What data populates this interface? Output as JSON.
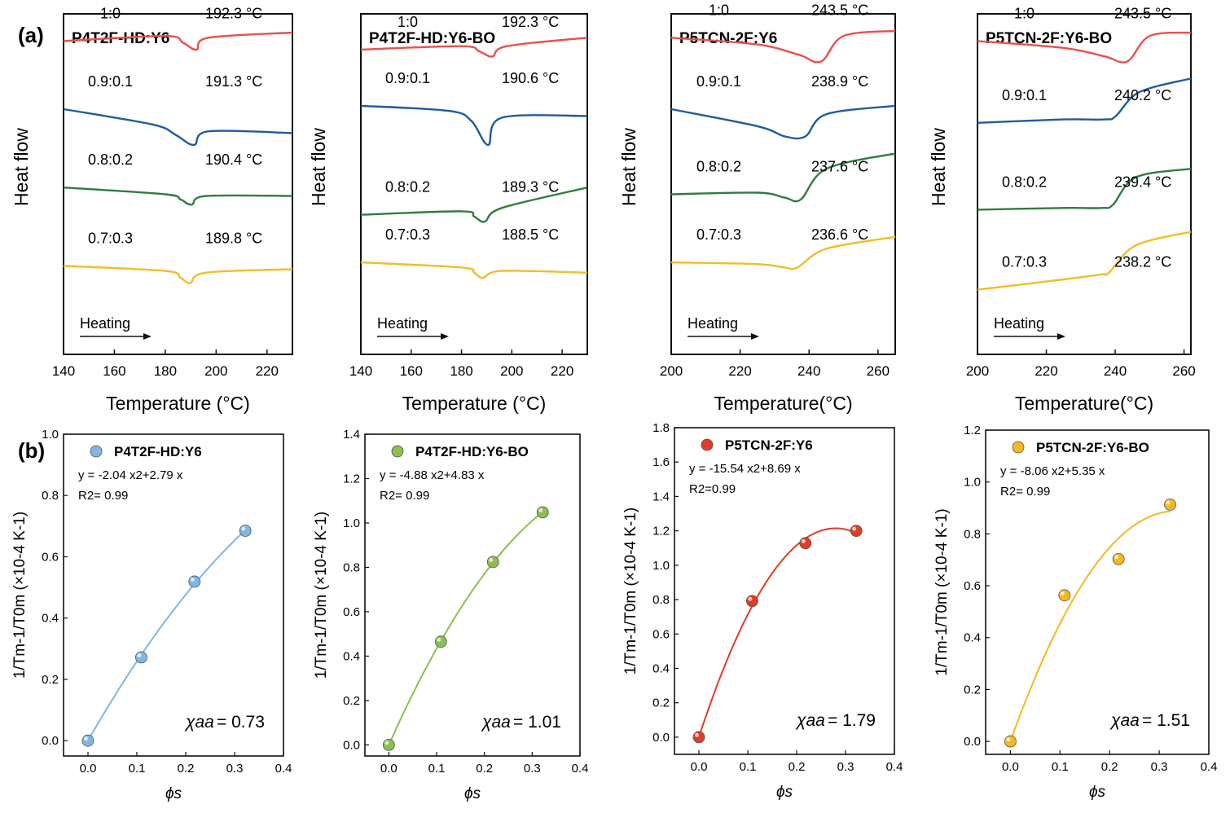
{
  "panel_labels": [
    "(a)",
    "(b)"
  ],
  "dsc_xlabel": [
    "Temperature (°C)",
    "Temperature (°C)",
    "Temperature(°C)",
    "Temperature(°C)"
  ],
  "dsc_ylabel": "Heat flow",
  "heating_label": "Heating",
  "fit_ylabel": "1/Tm-1/T0m (×10-4 K-1)",
  "fit_xlabel": "ϕs",
  "colors": {
    "r10": "#e8504f",
    "r91": "#1d5c9e",
    "r82": "#2e7d3e",
    "r73": "#f2bd26",
    "fit0": "#7fb7e3",
    "fit1": "#8cbf4f",
    "fit2": "#e03c26",
    "fit3": "#f5b820"
  },
  "chart_data": [
    {
      "type": "line",
      "title": "P4T2F-HD:Y6",
      "xlabel": "Temperature (°C)",
      "ylabel": "Heat flow",
      "xlim": [
        140,
        230
      ],
      "xticks": [
        140,
        160,
        180,
        200,
        220
      ],
      "series": [
        {
          "name": "1:0",
          "peak": "192.3 °C",
          "x": [
            140,
            180,
            187,
            192.3,
            197,
            230
          ],
          "y": [
            0.92,
            0.935,
            0.915,
            0.895,
            0.93,
            0.945
          ]
        },
        {
          "name": "0.9:0.1",
          "peak": "191.3 °C",
          "x": [
            140,
            175,
            184,
            191.3,
            197,
            230
          ],
          "y": [
            0.72,
            0.675,
            0.645,
            0.615,
            0.655,
            0.65
          ]
        },
        {
          "name": "0.8:0.2",
          "peak": "190.4 °C",
          "x": [
            140,
            180,
            186,
            190.4,
            196,
            230
          ],
          "y": [
            0.49,
            0.47,
            0.455,
            0.44,
            0.465,
            0.465
          ]
        },
        {
          "name": "0.7:0.3",
          "peak": "189.8 °C",
          "x": [
            140,
            180,
            186,
            189.8,
            196,
            230
          ],
          "y": [
            0.26,
            0.245,
            0.225,
            0.21,
            0.24,
            0.25
          ]
        }
      ]
    },
    {
      "type": "line",
      "title": "P4T2F-HD:Y6-BO",
      "xlabel": "Temperature (°C)",
      "ylabel": "Heat flow",
      "xlim": [
        140,
        230
      ],
      "xticks": [
        140,
        160,
        180,
        200,
        220
      ],
      "series": [
        {
          "name": "1:0",
          "peak": "192.3 °C",
          "x": [
            140,
            180,
            187,
            192.3,
            198,
            230
          ],
          "y": [
            0.895,
            0.905,
            0.89,
            0.875,
            0.905,
            0.93
          ]
        },
        {
          "name": "0.9:0.1",
          "peak": "190.6 °C",
          "x": [
            140,
            175,
            184,
            190.6,
            196,
            230
          ],
          "y": [
            0.73,
            0.715,
            0.685,
            0.615,
            0.695,
            0.7
          ]
        },
        {
          "name": "0.8:0.2",
          "peak": "189.3 °C",
          "x": [
            140,
            180,
            185,
            189.3,
            196,
            230
          ],
          "y": [
            0.41,
            0.42,
            0.405,
            0.39,
            0.43,
            0.49
          ]
        },
        {
          "name": "0.7:0.3",
          "peak": "188.5 °C",
          "x": [
            140,
            180,
            185,
            188.5,
            196,
            230
          ],
          "y": [
            0.27,
            0.255,
            0.24,
            0.225,
            0.245,
            0.24
          ]
        }
      ]
    },
    {
      "type": "line",
      "title": "P5TCN-2F:Y6",
      "xlabel": "Temperature(°C)",
      "ylabel": "Heat flow",
      "xlim": [
        200,
        265
      ],
      "xticks": [
        200,
        220,
        240,
        260
      ],
      "series": [
        {
          "name": "1:0",
          "peak": "243.5 °C",
          "x": [
            200,
            225,
            237,
            243.5,
            250,
            265
          ],
          "y": [
            0.93,
            0.91,
            0.88,
            0.86,
            0.935,
            0.95
          ]
        },
        {
          "name": "0.9:0.1",
          "peak": "238.9 °C",
          "x": [
            200,
            225,
            233,
            238.9,
            245,
            265
          ],
          "y": [
            0.72,
            0.67,
            0.64,
            0.64,
            0.705,
            0.73
          ]
        },
        {
          "name": "0.8:0.2",
          "peak": "237.6 °C",
          "x": [
            200,
            225,
            233,
            237.6,
            245,
            265
          ],
          "y": [
            0.47,
            0.475,
            0.46,
            0.455,
            0.545,
            0.59
          ]
        },
        {
          "name": "0.7:0.3",
          "peak": "236.6 °C",
          "x": [
            200,
            225,
            233,
            236.6,
            245,
            265
          ],
          "y": [
            0.27,
            0.265,
            0.255,
            0.255,
            0.31,
            0.345
          ]
        }
      ]
    },
    {
      "type": "line",
      "title": "P5TCN-2F:Y6-BO",
      "xlabel": "Temperature(°C)",
      "ylabel": "Heat flow",
      "xlim": [
        200,
        262
      ],
      "xticks": [
        200,
        220,
        240,
        260
      ],
      "series": [
        {
          "name": "1:0",
          "peak": "243.5 °C",
          "x": [
            200,
            225,
            237,
            243.5,
            250,
            262
          ],
          "y": [
            0.92,
            0.9,
            0.875,
            0.86,
            0.935,
            0.945
          ]
        },
        {
          "name": "0.9:0.1",
          "peak": "240.2 °C",
          "x": [
            200,
            225,
            237,
            240.2,
            247,
            262
          ],
          "y": [
            0.68,
            0.69,
            0.69,
            0.7,
            0.77,
            0.81
          ]
        },
        {
          "name": "0.8:0.2",
          "peak": "239.4 °C",
          "x": [
            200,
            225,
            236,
            239.4,
            246,
            262
          ],
          "y": [
            0.425,
            0.43,
            0.43,
            0.44,
            0.52,
            0.545
          ]
        },
        {
          "name": "0.7:0.3",
          "peak": "238.2 °C",
          "x": [
            200,
            225,
            236,
            238.2,
            246,
            262
          ],
          "y": [
            0.19,
            0.22,
            0.235,
            0.24,
            0.32,
            0.36
          ]
        }
      ]
    },
    {
      "type": "scatter",
      "title": "P4T2F-HD:Y6",
      "equation": "y = -2.04 x2+2.79 x",
      "r2": "R2= 0.99",
      "chi": "0.73",
      "chi_symbol": "χaa",
      "xlim": [
        -0.05,
        0.4
      ],
      "ylim": [
        -0.05,
        1.0
      ],
      "xticks": [
        "0.0",
        "0.1",
        "0.2",
        "0.3",
        "0.4"
      ],
      "yticks": [
        "0.0",
        "0.2",
        "0.4",
        "0.6",
        "0.8",
        "1.0"
      ],
      "x": [
        0.0,
        0.109,
        0.218,
        0.322
      ],
      "y": [
        0.0,
        0.272,
        0.519,
        0.685
      ],
      "fit": {
        "a": -2.04,
        "b": 2.79
      }
    },
    {
      "type": "scatter",
      "title": "P4T2F-HD:Y6-BO",
      "equation": "y = -4.88 x2+4.83 x",
      "r2": "R2= 0.99",
      "chi": "1.01",
      "chi_symbol": "χaa",
      "xlim": [
        -0.05,
        0.4
      ],
      "ylim": [
        -0.05,
        1.4
      ],
      "xticks": [
        "0.0",
        "0.1",
        "0.2",
        "0.3",
        "0.4"
      ],
      "yticks": [
        "0.0",
        "0.2",
        "0.4",
        "0.6",
        "0.8",
        "1.0",
        "1.2",
        "1.4"
      ],
      "x": [
        0.0,
        0.109,
        0.218,
        0.322
      ],
      "y": [
        0.0,
        0.465,
        0.824,
        1.048
      ],
      "fit": {
        "a": -4.88,
        "b": 4.83
      }
    },
    {
      "type": "scatter",
      "title": "P5TCN-2F:Y6",
      "equation": "y = -15.54 x2+8.69 x",
      "r2": "R2=0.99",
      "chi": "1.79",
      "chi_symbol": "χaa",
      "xlim": [
        -0.05,
        0.4
      ],
      "ylim": [
        -0.1,
        1.8
      ],
      "xticks": [
        "0.0",
        "0.1",
        "0.2",
        "0.3",
        "0.4"
      ],
      "yticks": [
        "0.0",
        "0.2",
        "0.4",
        "0.6",
        "0.8",
        "1.0",
        "1.2",
        "1.4",
        "1.6",
        "1.8"
      ],
      "x": [
        0.0,
        0.109,
        0.218,
        0.322
      ],
      "y": [
        0.0,
        0.792,
        1.128,
        1.2
      ],
      "fit": {
        "a": -15.54,
        "b": 8.69
      }
    },
    {
      "type": "scatter",
      "title": "P5TCN-2F:Y6-BO",
      "equation": "y = -8.06 x2+5.35 x",
      "r2": "R2= 0.99",
      "chi": "1.51",
      "chi_symbol": "χaa",
      "xlim": [
        -0.05,
        0.4
      ],
      "ylim": [
        -0.05,
        1.2
      ],
      "xticks": [
        "0.0",
        "0.1",
        "0.2",
        "0.3",
        "0.4"
      ],
      "yticks": [
        "0.0",
        "0.2",
        "0.4",
        "0.6",
        "0.8",
        "1.0",
        "1.2"
      ],
      "x": [
        0.0,
        0.109,
        0.218,
        0.322
      ],
      "y": [
        0.0,
        0.563,
        0.703,
        0.913
      ],
      "fit": {
        "a": -8.06,
        "b": 5.35
      }
    }
  ]
}
